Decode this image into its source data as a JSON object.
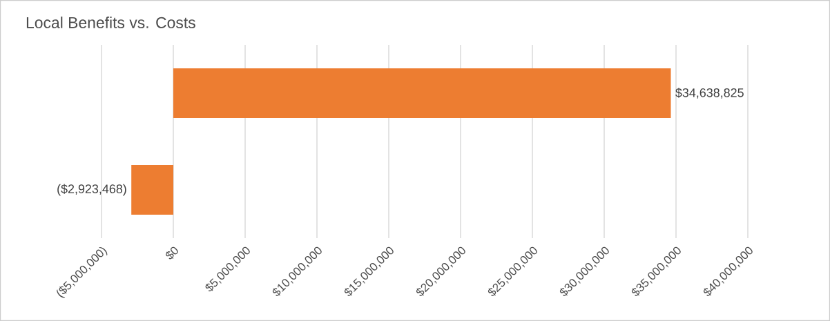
{
  "chart_data": {
    "type": "bar",
    "orientation": "horizontal",
    "title": "Local Benefits vs. Costs",
    "categories": [
      null,
      null
    ],
    "values": [
      34638825,
      -2923468
    ],
    "value_labels": [
      "$34,638,825",
      "($2,923,468)"
    ],
    "color": "#ed7d31",
    "xlim": [
      -5000000,
      40000000
    ],
    "xticks": [
      {
        "value": -5000000,
        "label": "($5,000,000)"
      },
      {
        "value": 0,
        "label": "$0"
      },
      {
        "value": 5000000,
        "label": "$5,000,000"
      },
      {
        "value": 10000000,
        "label": "$10,000,000"
      },
      {
        "value": 15000000,
        "label": "$15,000,000"
      },
      {
        "value": 20000000,
        "label": "$20,000,000"
      },
      {
        "value": 25000000,
        "label": "$25,000,000"
      },
      {
        "value": 30000000,
        "label": "$30,000,000"
      },
      {
        "value": 35000000,
        "label": "$35,000,000"
      },
      {
        "value": 40000000,
        "label": "$40,000,000"
      }
    ],
    "grid": "x"
  }
}
